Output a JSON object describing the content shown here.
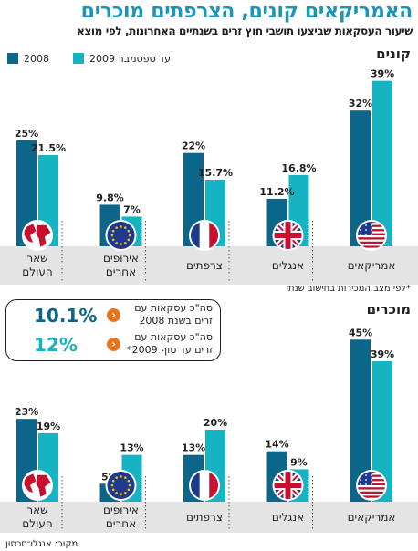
{
  "title": "האמריקאים קונים, הצרפתים מוכרים",
  "subtitle": "שיעור העסקאות שביצעו תושבי חוץ זרים בשנתיים האחרונות, לפי מוצא",
  "legend": {
    "dark": "2008",
    "light": "עד ספטמבר 2009"
  },
  "colors": {
    "dark": "#0b6689",
    "light": "#16b3c3",
    "orange": "#e8721c",
    "label_band": "#e4e4e5",
    "title": "#1b95b4"
  },
  "chart_data": [
    {
      "type": "bar",
      "title": "קונים",
      "categories": [
        "אמריקאים",
        "אנגלים",
        "צרפתים",
        "אירופים אחרים",
        "שאר העולם"
      ],
      "category_lines": [
        [
          "אמריקאים"
        ],
        [
          "אנגלים"
        ],
        [
          "צרפתים"
        ],
        [
          "אירופים",
          "אחרים"
        ],
        [
          "שאר",
          "העולם"
        ]
      ],
      "icons": [
        "us-flag-icon",
        "uk-flag-icon",
        "france-flag-icon",
        "eu-flag-icon",
        "globe-icon"
      ],
      "series": [
        {
          "name": "2008",
          "values": [
            32,
            11.2,
            22,
            9.8,
            25
          ],
          "labels": [
            "32%",
            "11.2%",
            "22%",
            "9.8%",
            "25%"
          ]
        },
        {
          "name": "עד ספטמבר 2009",
          "values": [
            39,
            16.8,
            15.7,
            7,
            21.5
          ],
          "labels": [
            "39%",
            "16.8%",
            "15.7%",
            "7%",
            "21.5%"
          ]
        }
      ],
      "note": "*לפי מצב המכירות בחישוב שנתי"
    },
    {
      "type": "bar",
      "title": "מוכרים",
      "categories": [
        "אמריקאים",
        "אנגלים",
        "צרפתים",
        "אירופים אחרים",
        "שאר העולם"
      ],
      "category_lines": [
        [
          "אמריקאים"
        ],
        [
          "אנגלים"
        ],
        [
          "צרפתים"
        ],
        [
          "אירופים",
          "אחרים"
        ],
        [
          "שאר",
          "העולם"
        ]
      ],
      "icons": [
        "us-flag-icon",
        "uk-flag-icon",
        "france-flag-icon",
        "eu-flag-icon",
        "globe-icon"
      ],
      "series": [
        {
          "name": "2008",
          "values": [
            45,
            14,
            13,
            5,
            23
          ],
          "labels": [
            "45%",
            "14%",
            "13%",
            "5%",
            "23%"
          ]
        },
        {
          "name": "עד ספטמבר 2009",
          "values": [
            39,
            9,
            20,
            13,
            19
          ],
          "labels": [
            "39%",
            "9%",
            "20%",
            "13%",
            "19%"
          ]
        }
      ]
    }
  ],
  "stats": [
    {
      "value": "10.1%",
      "line1": "סה\"כ עסקאות עם",
      "line2": "זרים בשנת 2008"
    },
    {
      "value": "12%",
      "line1": "סה\"כ עסקאות עם",
      "line2": "זרים עד סוף 2009*"
    }
  ],
  "source": "מקור: אנגלו־סכסון"
}
